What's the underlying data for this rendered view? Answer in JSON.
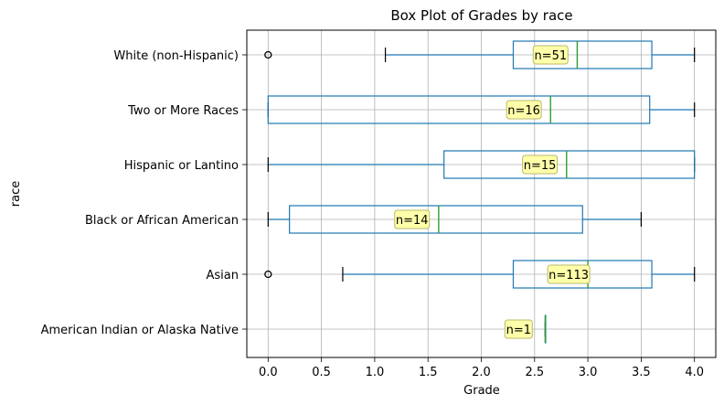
{
  "chart_data": {
    "type": "boxplot",
    "orientation": "horizontal",
    "title": "Box Plot of Grades by race",
    "xlabel": "Grade",
    "ylabel": "race",
    "xlim": [
      -0.2,
      4.2
    ],
    "xticks": [
      0.0,
      0.5,
      1.0,
      1.5,
      2.0,
      2.5,
      3.0,
      3.5,
      4.0
    ],
    "xtick_labels": [
      "0.0",
      "0.5",
      "1.0",
      "1.5",
      "2.0",
      "2.5",
      "3.0",
      "3.5",
      "4.0"
    ],
    "grid": true,
    "categories": [
      "American Indian or Alaska Native",
      "Asian",
      "Black or African American",
      "Hispanic or Lantino",
      "Two or More Races",
      "White (non-Hispanic)"
    ],
    "boxes": [
      {
        "category": "American Indian or Alaska Native",
        "whisker_low": 2.6,
        "q1": 2.6,
        "median": 2.6,
        "q3": 2.6,
        "whisker_high": 2.6,
        "outliers": [],
        "n_label": "n=1",
        "n_label_x": 2.35
      },
      {
        "category": "Asian",
        "whisker_low": 0.7,
        "q1": 2.3,
        "median": 3.0,
        "q3": 3.6,
        "whisker_high": 4.0,
        "outliers": [
          0.0
        ],
        "n_label": "n=113",
        "n_label_x": 2.82
      },
      {
        "category": "Black or African American",
        "whisker_low": 0.0,
        "q1": 0.2,
        "median": 1.6,
        "q3": 2.95,
        "whisker_high": 3.5,
        "outliers": [],
        "n_label": "n=14",
        "n_label_x": 1.35
      },
      {
        "category": "Hispanic or Lantino",
        "whisker_low": 0.0,
        "q1": 1.65,
        "median": 2.8,
        "q3": 4.0,
        "whisker_high": 4.0,
        "outliers": [],
        "n_label": "n=15",
        "n_label_x": 2.55
      },
      {
        "category": "Two or More Races",
        "whisker_low": 0.0,
        "q1": 0.0,
        "median": 2.65,
        "q3": 3.58,
        "whisker_high": 4.0,
        "outliers": [],
        "n_label": "n=16",
        "n_label_x": 2.4
      },
      {
        "category": "White (non-Hispanic)",
        "whisker_low": 1.1,
        "q1": 2.3,
        "median": 2.9,
        "q3": 3.6,
        "whisker_high": 4.0,
        "outliers": [
          0.0
        ],
        "n_label": "n=51",
        "n_label_x": 2.65
      }
    ],
    "colors": {
      "box": "#1f77b4",
      "median": "#2ca02c",
      "grid": "#b0b0b0",
      "label_bg": "#ffffaa",
      "label_border": "#b8b86a"
    }
  }
}
